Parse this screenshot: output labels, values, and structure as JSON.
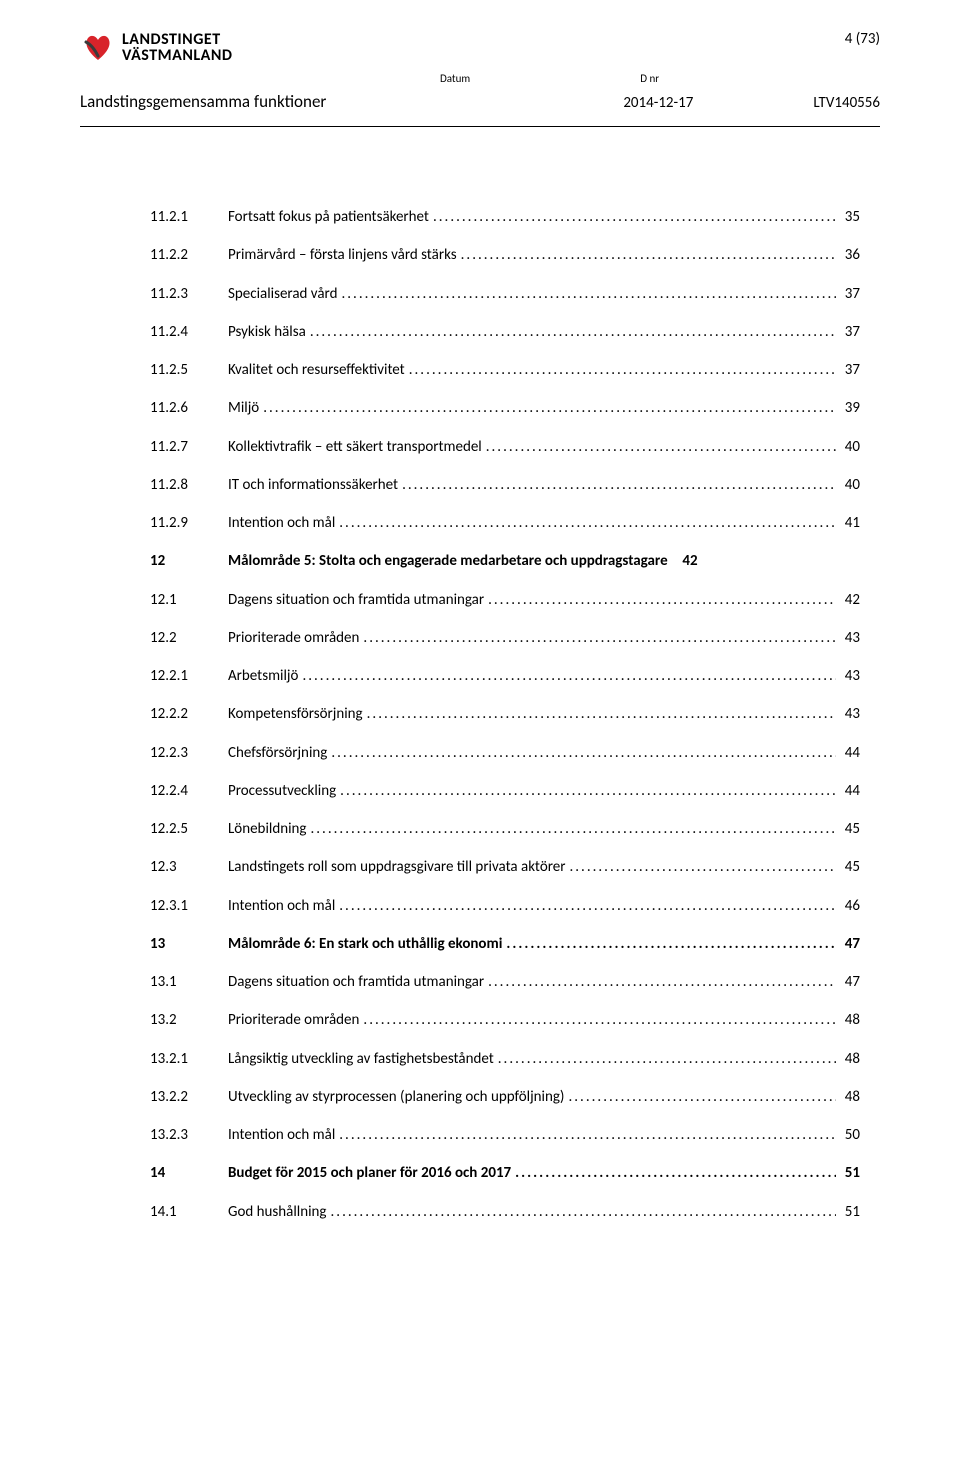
{
  "header": {
    "logo_line1": "LANDSTINGET",
    "logo_line2": "VÄSTMANLAND",
    "page_indicator": "4 (73)",
    "label_datum": "Datum",
    "label_dnr": "D nr",
    "org_name": "Landstingsgemensamma funktioner",
    "date": "2014-12-17",
    "dnr": "LTV140556"
  },
  "logo_colors": {
    "red": "#d8232a",
    "dark": "#3a3a3a"
  },
  "toc": [
    {
      "num": "11.2.1",
      "title": "Fortsatt fokus på patientsäkerhet",
      "page": "35",
      "bold": false
    },
    {
      "num": "11.2.2",
      "title": "Primärvård – första linjens vård stärks",
      "page": "36",
      "bold": false
    },
    {
      "num": "11.2.3",
      "title": "Specialiserad vård",
      "page": "37",
      "bold": false
    },
    {
      "num": "11.2.4",
      "title": "Psykisk hälsa",
      "page": "37",
      "bold": false
    },
    {
      "num": "11.2.5",
      "title": "Kvalitet och resurseffektivitet",
      "page": "37",
      "bold": false
    },
    {
      "num": "11.2.6",
      "title": "Miljö",
      "page": "39",
      "bold": false
    },
    {
      "num": "11.2.7",
      "title": "Kollektivtrafik – ett säkert transportmedel",
      "page": "40",
      "bold": false
    },
    {
      "num": "11.2.8",
      "title": "IT och informationssäkerhet",
      "page": "40",
      "bold": false
    },
    {
      "num": "11.2.9",
      "title": "Intention och mål",
      "page": "41",
      "bold": false
    },
    {
      "num": "12",
      "title": "Målområde 5: Stolta och engagerade medarbetare och uppdragstagare",
      "page": "42",
      "bold": true,
      "no_leader": true
    },
    {
      "num": "12.1",
      "title": "Dagens situation och framtida utmaningar",
      "page": "42",
      "bold": false
    },
    {
      "num": "12.2",
      "title": "Prioriterade områden",
      "page": "43",
      "bold": false
    },
    {
      "num": "12.2.1",
      "title": "Arbetsmiljö",
      "page": "43",
      "bold": false
    },
    {
      "num": "12.2.2",
      "title": "Kompetensförsörjning",
      "page": "43",
      "bold": false
    },
    {
      "num": "12.2.3",
      "title": "Chefsförsörjning",
      "page": "44",
      "bold": false
    },
    {
      "num": "12.2.4",
      "title": "Processutveckling",
      "page": "44",
      "bold": false
    },
    {
      "num": "12.2.5",
      "title": "Lönebildning",
      "page": "45",
      "bold": false
    },
    {
      "num": "12.3",
      "title": "Landstingets roll som uppdragsgivare till privata aktörer",
      "page": "45",
      "bold": false
    },
    {
      "num": "12.3.1",
      "title": "Intention och mål",
      "page": "46",
      "bold": false
    },
    {
      "num": "13",
      "title": "Målområde 6: En stark och uthållig ekonomi",
      "page": "47",
      "bold": true
    },
    {
      "num": "13.1",
      "title": "Dagens situation och framtida utmaningar",
      "page": "47",
      "bold": false
    },
    {
      "num": "13.2",
      "title": "Prioriterade områden",
      "page": "48",
      "bold": false
    },
    {
      "num": "13.2.1",
      "title": "Långsiktig utveckling av fastighetsbeståndet",
      "page": "48",
      "bold": false
    },
    {
      "num": "13.2.2",
      "title": "Utveckling av styrprocessen (planering och uppföljning)",
      "page": "48",
      "bold": false
    },
    {
      "num": "13.2.3",
      "title": "Intention och mål",
      "page": "50",
      "bold": false
    },
    {
      "num": "14",
      "title": "Budget för 2015 och planer för 2016 och 2017",
      "page": "51",
      "bold": true
    },
    {
      "num": "14.1",
      "title": "God hushållning",
      "page": "51",
      "bold": false
    }
  ]
}
